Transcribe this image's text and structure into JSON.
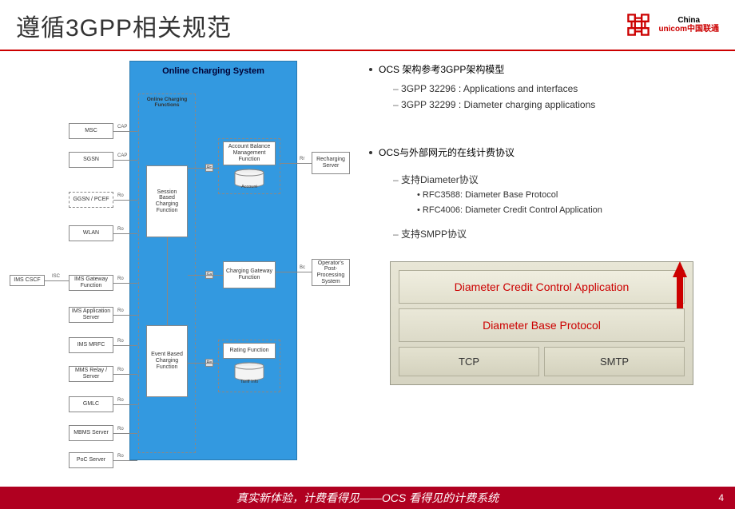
{
  "header": {
    "title": "遵循3GPP相关规范",
    "logo_top": "China",
    "logo_bottom": "unicom中国联通"
  },
  "bullets": {
    "b1": "OCS 架构参考3GPP架构模型",
    "b1a": "3GPP 32296 : Applications and interfaces",
    "b1b": "3GPP 32299 : Diameter charging applications",
    "b2": "OCS与外部网元的在线计费协议",
    "b2a": "支持Diameter协议",
    "b2a1": "RFC3588: Diameter Base Protocol",
    "b2a2": "RFC4006: Diameter Credit Control Application",
    "b2b": "支持SMPP协议"
  },
  "stack": {
    "l1": "Diameter Credit Control Application",
    "l2": "Diameter Base Protocol",
    "l3a": "TCP",
    "l3b": "SMTP"
  },
  "diagram": {
    "ocs_title": "Online Charging System",
    "ocf_title": "Online Charging Functions",
    "left_nodes": [
      "MSC",
      "SGSN",
      "GGSN / PCEF",
      "WLAN",
      "IMS Gateway Function",
      "IMS Application Server",
      "IMS MRFC",
      "MMS Relay / Server",
      "GMLC",
      "MBMS Server",
      "PoC Server"
    ],
    "left_labels": [
      "CAP",
      "CAP",
      "Ro",
      "Ro",
      "Ro",
      "Ro",
      "Ro",
      "Ro",
      "Ro",
      "Ro",
      "Ro"
    ],
    "extra_left": "IMS  CSCF",
    "extra_left_lbl": "ISC",
    "sbcf": "Session Based Charging Function",
    "ebcf": "Event Based Charging Function",
    "abmf": "Account Balance Management Function",
    "account": "Account",
    "cgf": "Charging Gateway Function",
    "rating": "Rating Function",
    "tariff": "Tariff Info",
    "recharge": "Recharging Server",
    "ops": "Operator's Post- Processing System",
    "ports": {
      "rc": "Rc",
      "ga": "Ga",
      "re": "Re",
      "rr": "Rr",
      "bc": "Bc"
    },
    "colors": {
      "ocs_bg": "#3399e0",
      "box_border": "#888888",
      "dash_border": "#888888"
    }
  },
  "footer": {
    "text": "真实新体验，计费看得见——OCS 看得见的计费系统",
    "page": "4"
  }
}
